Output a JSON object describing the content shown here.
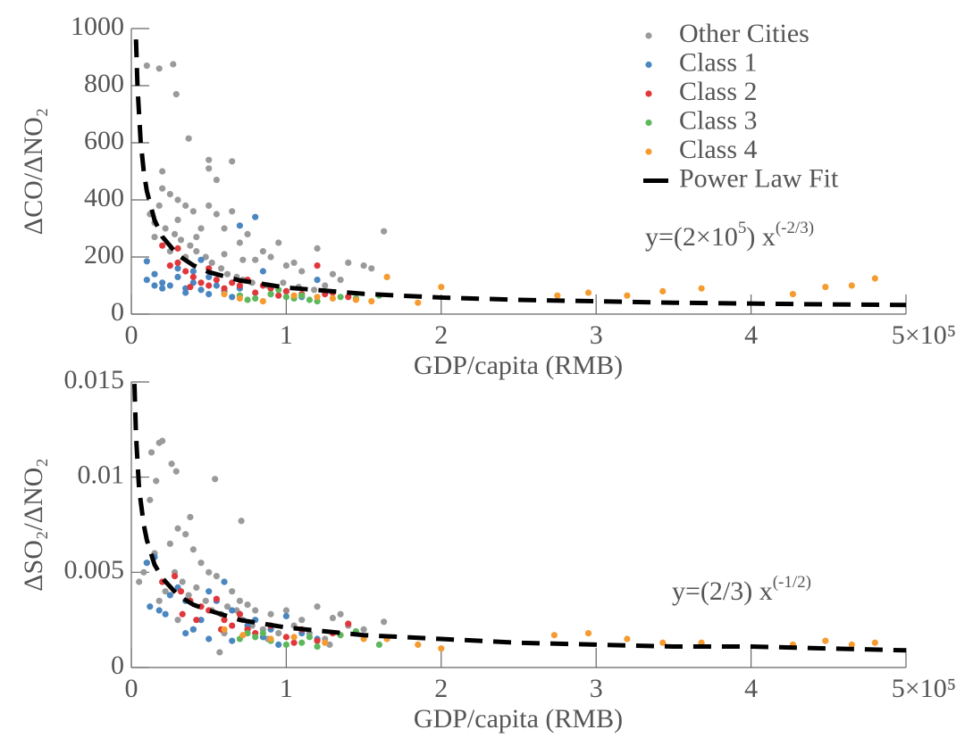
{
  "chart_data": [
    {
      "type": "scatter",
      "x_label": "GDP/capita (RMB)",
      "y_label": "ΔCO/ΔNO₂",
      "xlim": [
        0,
        5
      ],
      "xticks": [
        0,
        1,
        2,
        3,
        4,
        {
          "value": 5,
          "label": "5×10⁵"
        }
      ],
      "ylim": [
        0,
        1000
      ],
      "yticks": [
        0,
        200,
        400,
        600,
        800,
        1000
      ],
      "legend": "upper right",
      "annotation": [
        "y=(2×10",
        "5",
        ") x",
        "(-2/3)"
      ],
      "series": [
        {
          "name": "Other Cities",
          "color": "#9a9a9a",
          "x": [
            0.1,
            0.18,
            0.27,
            0.29,
            0.37,
            0.2,
            0.2,
            0.25,
            0.3,
            0.35,
            0.4,
            0.5,
            0.5,
            0.55,
            0.5,
            0.55,
            0.65,
            0.6,
            0.65,
            0.7,
            0.75,
            0.8,
            0.85,
            0.9,
            0.95,
            1.0,
            1.05,
            1.1,
            1.2,
            1.3,
            1.35,
            1.4,
            1.5,
            1.55,
            1.63,
            0.15,
            0.12,
            0.18,
            0.22,
            0.28,
            0.32,
            0.38,
            0.42,
            0.48,
            0.52,
            0.58,
            0.62,
            0.68,
            0.72,
            0.78,
            0.88,
            0.98,
            1.08,
            1.18,
            0.15,
            0.25,
            0.35,
            0.45,
            0.3,
            0.42,
            1.25,
            0.6,
            0.72
          ],
          "values": [
            870,
            860,
            875,
            770,
            615,
            500,
            440,
            420,
            400,
            380,
            360,
            540,
            510,
            350,
            380,
            470,
            535,
            300,
            360,
            250,
            280,
            190,
            220,
            200,
            250,
            170,
            180,
            150,
            230,
            140,
            120,
            180,
            170,
            160,
            290,
            320,
            350,
            380,
            300,
            280,
            260,
            240,
            220,
            200,
            180,
            160,
            140,
            130,
            120,
            110,
            100,
            110,
            95,
            85,
            270,
            220,
            200,
            300,
            330,
            270,
            100,
            210,
            190
          ]
        },
        {
          "name": "Class 1",
          "color": "#4a86c0",
          "x": [
            0.1,
            0.1,
            0.15,
            0.2,
            0.25,
            0.3,
            0.35,
            0.4,
            0.45,
            0.5,
            0.55,
            0.6,
            0.65,
            0.7,
            0.8,
            0.85,
            0.7,
            0.9,
            1.0,
            1.1,
            1.2,
            0.4,
            0.5,
            0.3,
            0.2,
            0.15,
            0.45,
            0.35
          ],
          "values": [
            185,
            120,
            140,
            110,
            100,
            130,
            90,
            150,
            85,
            70,
            100,
            80,
            60,
            310,
            340,
            150,
            90,
            70,
            80,
            60,
            120,
            110,
            130,
            160,
            90,
            100,
            190,
            75
          ]
        },
        {
          "name": "Class 2",
          "color": "#e0373c",
          "x": [
            0.2,
            0.3,
            0.25,
            0.35,
            0.4,
            0.45,
            0.5,
            0.55,
            0.6,
            0.65,
            0.7,
            0.75,
            0.8,
            0.9,
            1.0,
            1.1,
            1.2,
            1.3,
            1.4,
            0.3,
            0.5,
            0.85,
            0.95,
            1.25,
            0.38
          ],
          "values": [
            240,
            230,
            170,
            150,
            130,
            110,
            100,
            120,
            90,
            110,
            100,
            120,
            75,
            90,
            80,
            70,
            170,
            75,
            60,
            180,
            160,
            100,
            65,
            70,
            95
          ]
        },
        {
          "name": "Class 3",
          "color": "#5db85c",
          "x": [
            0.7,
            0.8,
            0.9,
            1.0,
            1.05,
            1.15,
            1.2,
            1.35,
            1.45,
            1.6,
            0.75,
            0.95,
            1.1
          ],
          "values": [
            65,
            55,
            70,
            60,
            55,
            50,
            45,
            60,
            55,
            65,
            50,
            85,
            65
          ]
        },
        {
          "name": "Class 4",
          "color": "#f59b2f",
          "x": [
            1.65,
            2.0,
            1.85,
            2.75,
            2.95,
            3.2,
            3.43,
            3.68,
            4.27,
            4.48,
            4.65,
            4.8,
            1.2,
            1.45,
            0.7,
            0.85,
            1.05,
            1.3,
            0.6,
            1.55
          ],
          "values": [
            130,
            95,
            40,
            65,
            75,
            65,
            80,
            90,
            70,
            95,
            100,
            125,
            60,
            50,
            55,
            45,
            65,
            55,
            70,
            45
          ]
        },
        {
          "name": "Power Law Fit",
          "type": "line",
          "color": "#000000",
          "x": [
            0.03,
            0.04,
            0.06,
            0.08,
            0.1,
            0.15,
            0.2,
            0.3,
            0.4,
            0.5,
            0.7,
            1,
            1.5,
            2,
            2.5,
            3,
            3.5,
            4,
            4.5,
            5
          ],
          "values": [
            962,
            793,
            606,
            500,
            431,
            329,
            271,
            207,
            171,
            147,
            118,
            93,
            71,
            58,
            50,
            45,
            40,
            37,
            34,
            32
          ]
        }
      ]
    },
    {
      "type": "scatter",
      "x_label": "GDP/capita (RMB)",
      "y_label": "ΔSO₂/ΔNO₂",
      "xlim": [
        0,
        5
      ],
      "xticks": [
        0,
        1,
        2,
        3,
        4,
        {
          "value": 5,
          "label": "5×10⁵"
        }
      ],
      "ylim": [
        0,
        0.015
      ],
      "yticks": [
        0,
        0.005,
        0.01,
        0.015
      ],
      "annotation": [
        "y=(2/3) x",
        "(-1/2)"
      ],
      "series": [
        {
          "color": "#9a9a9a",
          "x": [
            0.13,
            0.18,
            0.2,
            0.16,
            0.26,
            0.29,
            0.54,
            0.12,
            0.71,
            0.38,
            0.3,
            0.25,
            0.35,
            0.4,
            0.45,
            0.5,
            0.55,
            0.6,
            0.65,
            0.7,
            0.75,
            0.8,
            0.9,
            1.0,
            1.1,
            1.2,
            1.3,
            1.35,
            1.4,
            1.5,
            1.63,
            0.05,
            0.08,
            0.1,
            0.15,
            0.2,
            0.22,
            0.28,
            0.33,
            0.37,
            0.42,
            0.48,
            0.52,
            0.58,
            0.62,
            0.68,
            0.72,
            0.78,
            0.85,
            0.95,
            1.05,
            1.15,
            1.25,
            0.57,
            0.3,
            0.4,
            0.6,
            0.88,
            1.28,
            0.18
          ],
          "values": [
            0.0113,
            0.0118,
            0.0119,
            0.0098,
            0.0107,
            0.0103,
            0.0099,
            0.0088,
            0.0077,
            0.0079,
            0.0073,
            0.0065,
            0.007,
            0.0062,
            0.0055,
            0.005,
            0.0048,
            0.0045,
            0.004,
            0.0035,
            0.0033,
            0.003,
            0.0028,
            0.003,
            0.0025,
            0.0032,
            0.0026,
            0.0028,
            0.0022,
            0.002,
            0.0024,
            0.0045,
            0.005,
            0.0055,
            0.006,
            0.0045,
            0.004,
            0.005,
            0.0045,
            0.0038,
            0.0042,
            0.0035,
            0.003,
            0.0028,
            0.0032,
            0.003,
            0.0025,
            0.0022,
            0.002,
            0.0018,
            0.0022,
            0.0018,
            0.0015,
            0.0008,
            0.0025,
            0.002,
            0.0018,
            0.0015,
            0.0012,
            0.0035
          ]
        },
        {
          "color": "#4a86c0",
          "x": [
            0.1,
            0.15,
            0.12,
            0.18,
            0.22,
            0.3,
            0.35,
            0.4,
            0.45,
            0.5,
            0.55,
            0.6,
            0.65,
            0.7,
            0.75,
            0.8,
            0.9,
            1.0,
            1.1,
            1.2,
            0.35,
            0.5,
            0.25,
            0.65,
            0.85,
            0.95
          ],
          "values": [
            0.0055,
            0.0058,
            0.0032,
            0.003,
            0.0028,
            0.0042,
            0.0035,
            0.002,
            0.0025,
            0.004,
            0.0035,
            0.0045,
            0.003,
            0.0028,
            0.0022,
            0.0025,
            0.002,
            0.0027,
            0.0018,
            0.0015,
            0.0018,
            0.0015,
            0.0038,
            0.0014,
            0.0016,
            0.0012
          ]
        },
        {
          "color": "#e0373c",
          "x": [
            0.2,
            0.28,
            0.32,
            0.38,
            0.45,
            0.5,
            0.55,
            0.6,
            0.65,
            0.7,
            0.75,
            0.8,
            0.9,
            1.0,
            1.1,
            1.2,
            1.3,
            1.4,
            0.42,
            0.58,
            0.33,
            1.05
          ],
          "values": [
            0.0045,
            0.0048,
            0.004,
            0.0035,
            0.0032,
            0.003,
            0.0036,
            0.0025,
            0.0022,
            0.0028,
            0.002,
            0.0018,
            0.0022,
            0.0016,
            0.002,
            0.0014,
            0.0018,
            0.0023,
            0.0025,
            0.002,
            0.0028,
            0.0013
          ]
        },
        {
          "color": "#5db85c",
          "x": [
            0.7,
            0.75,
            0.8,
            0.9,
            1.0,
            1.1,
            1.2,
            1.35,
            1.45,
            1.6,
            0.85,
            1.15
          ],
          "values": [
            0.0015,
            0.0018,
            0.0016,
            0.0014,
            0.0012,
            0.0013,
            0.0011,
            0.0017,
            0.0019,
            0.0012,
            0.0018,
            0.0016
          ]
        },
        {
          "color": "#f59b2f",
          "x": [
            0.72,
            0.9,
            1.05,
            1.25,
            1.5,
            1.65,
            1.85,
            2.0,
            2.73,
            2.95,
            3.2,
            3.43,
            3.68,
            4.27,
            4.48,
            4.65,
            4.8,
            0.6
          ],
          "values": [
            0.0017,
            0.0015,
            0.0016,
            0.0013,
            0.0015,
            0.0015,
            0.0012,
            0.001,
            0.0017,
            0.0018,
            0.0015,
            0.0013,
            0.0013,
            0.0012,
            0.0014,
            0.0012,
            0.0013,
            0.002
          ]
        },
        {
          "type": "line",
          "color": "#000000",
          "x": [
            0.02,
            0.03,
            0.05,
            0.08,
            0.1,
            0.15,
            0.2,
            0.3,
            0.4,
            0.5,
            0.7,
            1,
            1.5,
            2,
            2.5,
            3,
            3.5,
            4,
            4.5,
            5
          ],
          "values": [
            0.0149,
            0.0122,
            0.0094,
            0.0075,
            0.0067,
            0.0054,
            0.0047,
            0.0038,
            0.0033,
            0.003,
            0.0025,
            0.0021,
            0.0017,
            0.0015,
            0.0013,
            0.0012,
            0.0011,
            0.0011,
            0.001,
            0.0009
          ]
        }
      ]
    }
  ]
}
